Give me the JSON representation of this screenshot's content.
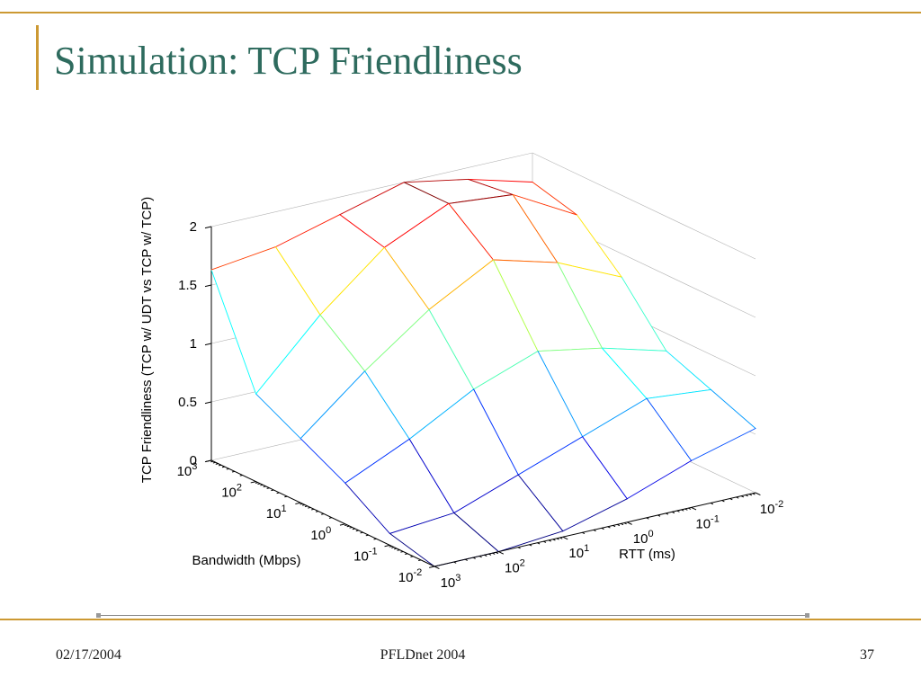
{
  "slide": {
    "title": "Simulation: TCP Friendliness",
    "footer": {
      "date": "02/17/2004",
      "venue": "PFLDnet 2004",
      "page": "37"
    }
  },
  "colors": {
    "accent_gold": "#CC9933",
    "title_green": "#2E6B5E",
    "footer_text": "#1A1A1A",
    "axis_line": "#000000",
    "box_line": "#B3B3B3"
  },
  "chart_data": {
    "type": "surface",
    "title": "",
    "xlabel": "RTT (ms)",
    "ylabel": "Bandwidth (Mbps)",
    "zlabel": "TCP Friendliness (TCP w/ UDT vs TCP w/ TCP)",
    "x_scale": "log10",
    "y_scale": "log10",
    "colormap": "jet",
    "zlim": [
      0,
      2
    ],
    "z_ticks": [
      0,
      0.5,
      1,
      1.5,
      2
    ],
    "rtt_exponents_front_to_right": [
      3,
      2,
      1,
      0,
      -1,
      -2
    ],
    "bandwidth_exponents_front_to_back": [
      -2,
      -1,
      0,
      1,
      2,
      3
    ],
    "tick_label_base": "10",
    "z_rows": "bandwidth axis, front 10^-2 to back 10^3",
    "z_cols": "RTT axis, front-left 10^3 to right 10^-2",
    "z_values": [
      [
        0.0,
        0.0,
        0.05,
        0.2,
        0.4,
        0.55
      ],
      [
        0.1,
        0.15,
        0.35,
        0.55,
        0.75,
        0.7
      ],
      [
        0.35,
        0.6,
        0.9,
        1.1,
        1.0,
        0.85
      ],
      [
        0.55,
        1.0,
        1.4,
        1.7,
        1.55,
        1.3
      ],
      [
        0.75,
        1.3,
        1.75,
        2.0,
        1.95,
        1.65
      ],
      [
        1.63,
        1.7,
        1.85,
        2.0,
        1.9,
        1.75
      ]
    ]
  }
}
